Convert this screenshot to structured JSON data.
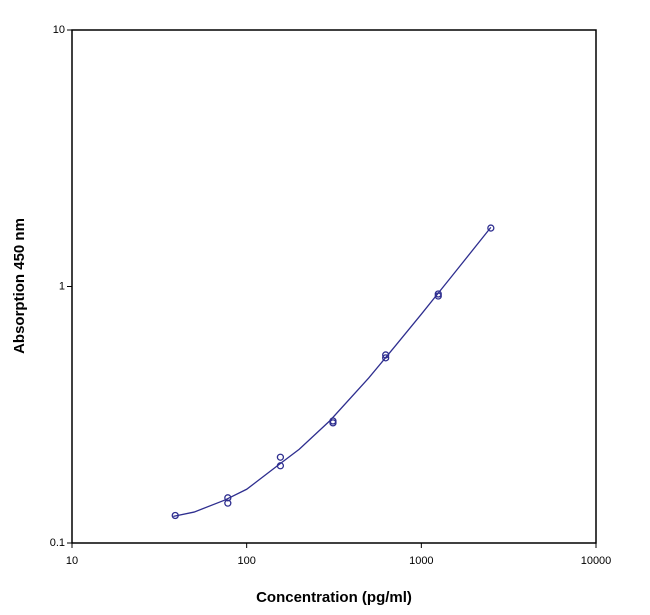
{
  "chart_data": {
    "type": "scatter",
    "x_label": "Concentration (pg/ml)",
    "y_label": "Absorption 450 nm",
    "xscale": "log",
    "yscale": "log",
    "x": [
      39,
      78,
      78,
      156,
      156,
      312,
      312,
      625,
      625,
      1250,
      1250,
      2500
    ],
    "values": [
      0.128,
      0.15,
      0.143,
      0.216,
      0.2,
      0.299,
      0.294,
      0.541,
      0.527,
      0.935,
      0.918,
      1.69
    ],
    "color": "#2e2e8f",
    "fit": {
      "x": [
        38,
        50,
        75,
        100,
        150,
        200,
        300,
        500,
        700,
        1000,
        1500,
        2500
      ],
      "values": [
        0.127,
        0.132,
        0.147,
        0.162,
        0.2,
        0.232,
        0.3,
        0.44,
        0.58,
        0.78,
        1.1,
        1.7
      ]
    },
    "xlim": [
      10,
      10000
    ],
    "ylim": [
      0.1,
      10
    ],
    "xticks": [
      10,
      100,
      1000,
      10000
    ],
    "yticks": [
      0.1,
      1,
      10
    ]
  }
}
